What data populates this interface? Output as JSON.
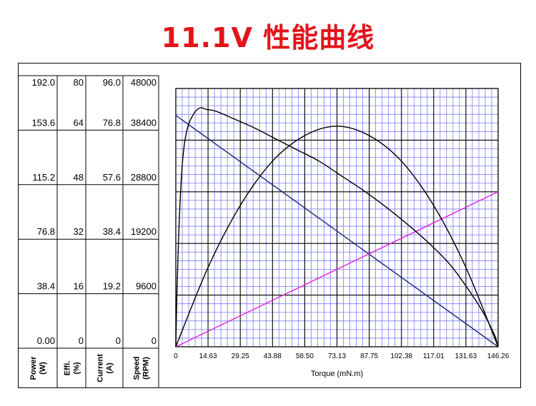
{
  "page": {
    "title": "11.1V 性能曲线"
  },
  "chart_data": {
    "type": "line",
    "xlabel": "Torque (mN.m)",
    "xlim": [
      0,
      146.26
    ],
    "x_ticks": [
      "0",
      "14.63",
      "29.25",
      "43.88",
      "58.50",
      "73.13",
      "87.75",
      "102.38",
      "117.01",
      "131.63",
      "146.26"
    ],
    "grid": true,
    "axes": [
      {
        "label": "Power\n(W)",
        "ticks": [
          "192.0",
          "153.6",
          "115.2",
          "76.8",
          "38.4",
          "0.00"
        ],
        "range": [
          0,
          192.0
        ]
      },
      {
        "label": "Effi.\n(%)",
        "ticks": [
          "80",
          "64",
          "48",
          "32",
          "16",
          "0"
        ],
        "range": [
          0,
          80
        ]
      },
      {
        "label": "Current\n(A)",
        "ticks": [
          "96.0",
          "76.8",
          "57.6",
          "38.4",
          "19.2",
          "0"
        ],
        "range": [
          0,
          96.0
        ]
      },
      {
        "label": "Speed\n(RPM)",
        "ticks": [
          "48000",
          "38400",
          "28800",
          "19200",
          "9600",
          "0"
        ],
        "range": [
          0,
          48000
        ]
      }
    ],
    "series": [
      {
        "axis": "Speed (RPM)",
        "color": "#1a237e",
        "x": [
          0,
          146.26
        ],
        "y": [
          43000,
          0
        ]
      },
      {
        "axis": "Current (A)",
        "color": "#e020e0",
        "x": [
          0,
          146.26
        ],
        "y": [
          0,
          57.6
        ]
      },
      {
        "axis": "Power (W)",
        "color": "#000000",
        "x": [
          0,
          14.63,
          29.25,
          43.88,
          58.5,
          73.13,
          87.75,
          102.38,
          117.01,
          131.63,
          146.26
        ],
        "y": [
          0,
          59,
          105,
          138,
          157,
          164,
          157,
          138,
          105,
          59,
          0
        ]
      },
      {
        "axis": "Effi. (%)",
        "color": "#000000",
        "x": [
          0,
          0.5,
          1.5,
          3,
          5,
          8,
          11,
          14,
          18,
          25,
          35,
          45,
          55,
          65,
          75,
          85,
          95,
          105,
          115,
          125,
          135,
          140,
          143,
          145,
          146.26
        ],
        "y": [
          0,
          16,
          38,
          57,
          67,
          72,
          74,
          73.5,
          73,
          71,
          68,
          64.5,
          61,
          57.5,
          53,
          48.5,
          43.5,
          38,
          32,
          25,
          15.5,
          10,
          6,
          3,
          0
        ]
      }
    ]
  }
}
